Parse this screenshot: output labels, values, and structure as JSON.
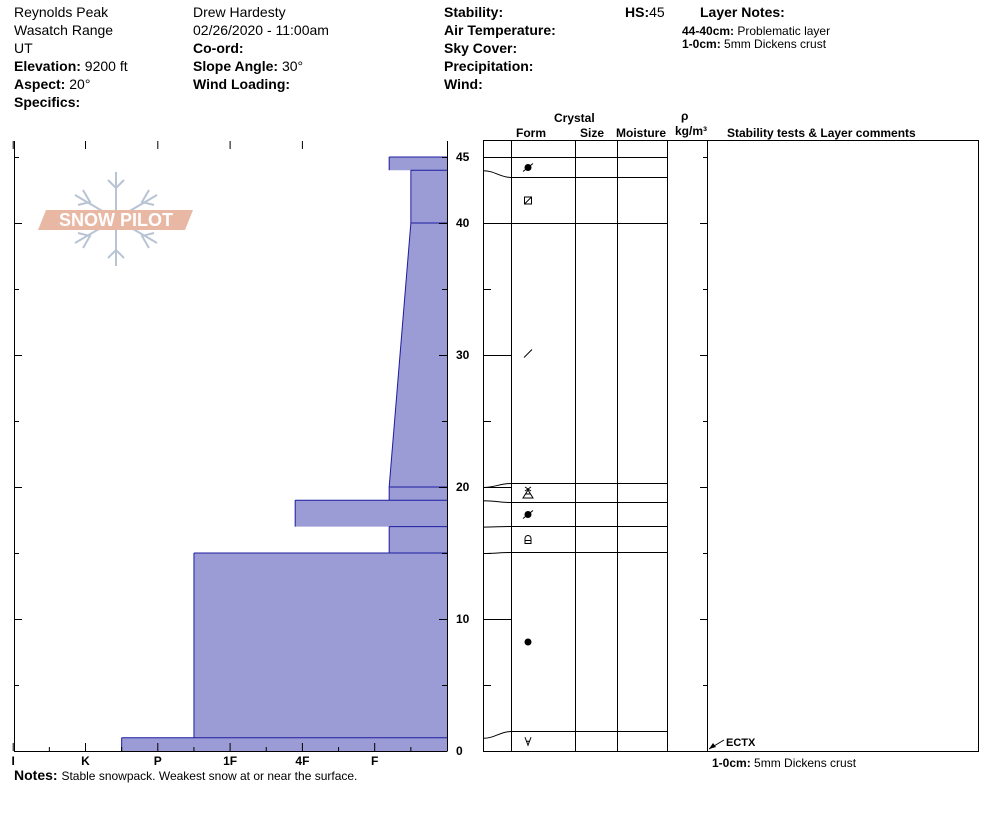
{
  "header": {
    "location": "Reynolds Peak",
    "range": "Wasatch Range",
    "state": "UT",
    "elevation_label": "Elevation:",
    "elevation_value": "9200 ft",
    "aspect_label": "Aspect:",
    "aspect_value": "20°",
    "specifics_label": "Specifics:",
    "observer": "Drew Hardesty",
    "datetime": "02/26/2020 - 11:00am",
    "coord_label": "Co-ord:",
    "slope_label": "Slope Angle:",
    "slope_value": "30°",
    "wind_loading_label": "Wind Loading:",
    "stability_label": "Stability:",
    "air_temp_label": "Air Temperature:",
    "sky_cover_label": "Sky Cover:",
    "precip_label": "Precipitation:",
    "wind_label": "Wind:",
    "hs_label": "HS:",
    "hs_value": "45",
    "layer_notes_title": "Layer Notes:",
    "layer_notes": [
      {
        "range": "44-40cm:",
        "text": "Problematic layer"
      },
      {
        "range": "1-0cm:",
        "text": "5mm Dickens crust"
      }
    ]
  },
  "columns": {
    "crystal": "Crystal",
    "form": "Form",
    "size": "Size",
    "moisture": "Moisture",
    "rho": "ρ",
    "density_unit": "kg/m³",
    "comments": "Stability tests & Layer comments"
  },
  "logo_text": "SNOW PILOT",
  "notes_label": "Notes:",
  "notes_text": "Stable snowpack.  Weakest snow at or near the surface.",
  "test_label": "ECTX",
  "bottom_comment": {
    "range": "1-0cm:",
    "text": "5mm Dickens crust"
  },
  "colors": {
    "fill": "#9b9bd5",
    "layer_line": "#1c1ca0",
    "logo": "#e8b8a4",
    "flake": "#b8c4d4"
  },
  "chart_data": {
    "type": "bar",
    "orientation": "horizontal",
    "x_categories": [
      "I",
      "K",
      "P",
      "1F",
      "4F",
      "F"
    ],
    "y_ticks": [
      0,
      10,
      20,
      30,
      40,
      45
    ],
    "ylim": [
      0,
      45
    ],
    "layers": [
      {
        "top": 45,
        "bottom": 44,
        "hardness_top": 5.7,
        "hardness_bottom": 5.7,
        "form": "rounding-faceted",
        "form_icon": "rounded-filled"
      },
      {
        "top": 44,
        "bottom": 40,
        "hardness_top": 6.0,
        "hardness_bottom": 6.0,
        "form": "faceted",
        "form_icon": "square"
      },
      {
        "top": 40,
        "bottom": 20,
        "hardness_top": 6.0,
        "hardness_bottom": 5.7,
        "form": "decomposing",
        "form_icon": "slash"
      },
      {
        "top": 20,
        "bottom": 19,
        "hardness_top": 5.7,
        "hardness_bottom": 5.7,
        "form": "depth hoar / surface hoar",
        "form_icon": "hoar"
      },
      {
        "top": 19,
        "bottom": 17,
        "hardness_top": 4.4,
        "hardness_bottom": 4.4,
        "form": "rounding-faceted",
        "form_icon": "rounded-filled"
      },
      {
        "top": 17,
        "bottom": 15,
        "hardness_top": 5.7,
        "hardness_bottom": 5.7,
        "form": "faceted-rounding",
        "form_icon": "square-rounded"
      },
      {
        "top": 15,
        "bottom": 1,
        "hardness_top": 3.0,
        "hardness_bottom": 3.0,
        "form": "rounded grains",
        "form_icon": "dot"
      },
      {
        "top": 1,
        "bottom": 0,
        "hardness_top": 2.0,
        "hardness_bottom": 2.0,
        "form": "melt-freeze crust",
        "form_icon": "crust"
      }
    ],
    "tests": [
      {
        "label": "ECTX",
        "depth": 0
      }
    ]
  }
}
